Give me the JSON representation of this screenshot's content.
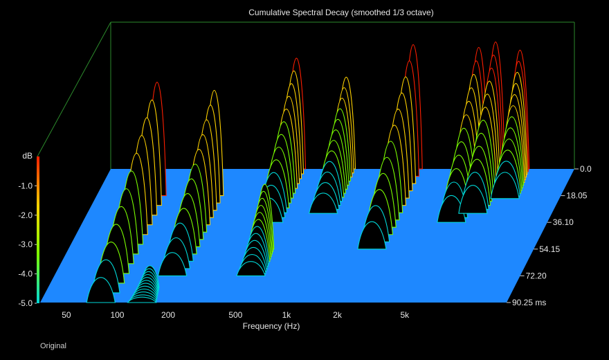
{
  "chart_data": {
    "type": "waterfall-3d",
    "title": "Cumulative Spectral Decay (smoothed 1/3 octave)",
    "xlabel": "Frequency (Hz)",
    "zlabel": "dB",
    "x_ticks": [
      "50",
      "100",
      "200",
      "500",
      "1k",
      "2k",
      "5k"
    ],
    "x_tick_values": [
      50,
      100,
      200,
      500,
      1000,
      2000,
      5000
    ],
    "x_range": [
      35,
      20000
    ],
    "x_scale": "log",
    "z_ticks": [
      "-1.0",
      "-2.0",
      "-3.0",
      "-4.0",
      "-5.0"
    ],
    "z_range": [
      -5.0,
      0.0
    ],
    "time_ticks": [
      "0.0",
      "18.05",
      "36.10",
      "54.15",
      "72.20",
      "90.25 ms"
    ],
    "time_range_ms": [
      0.0,
      90.25
    ],
    "colorbar": [
      "#ff1e00",
      "#ffd200",
      "#7cff00",
      "#00d8d8"
    ],
    "floor_color": "#1e88ff",
    "resonances": [
      {
        "freq": 80,
        "height": -0.8,
        "start_ms": 18.05,
        "end_ms": 90.25
      },
      {
        "freq": 175,
        "height": -1.1,
        "start_ms": 18.05,
        "end_ms": 72.2
      },
      {
        "freq": 140,
        "height": -4.2,
        "start_ms": 80.0,
        "end_ms": 90.25
      },
      {
        "freq": 445,
        "height": -0.9,
        "start_ms": 0.0,
        "end_ms": 36.1
      },
      {
        "freq": 510,
        "height": -2.6,
        "start_ms": 54.15,
        "end_ms": 72.2
      },
      {
        "freq": 880,
        "height": -1.6,
        "start_ms": 0.0,
        "end_ms": 30.0
      },
      {
        "freq": 2200,
        "height": -0.4,
        "start_ms": 0.0,
        "end_ms": 54.15
      },
      {
        "freq": 5400,
        "height": -0.5,
        "start_ms": 0.0,
        "end_ms": 36.1
      },
      {
        "freq": 6800,
        "height": -0.3,
        "start_ms": 0.0,
        "end_ms": 30.0
      },
      {
        "freq": 9500,
        "height": -0.6,
        "start_ms": 0.0,
        "end_ms": 20.0
      }
    ]
  },
  "footer": {
    "label": "Original"
  }
}
